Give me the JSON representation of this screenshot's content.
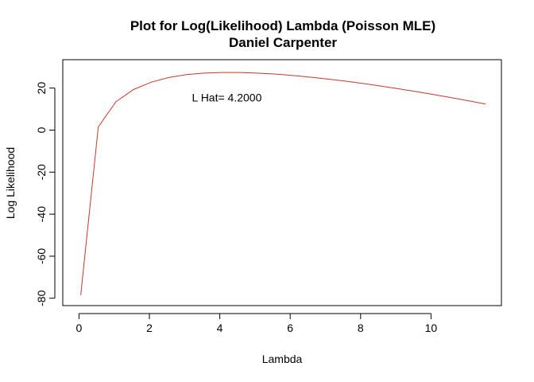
{
  "chart_data": {
    "type": "line",
    "title": "Plot for Log(Likelihood) Lambda (Poisson MLE)",
    "subtitle": "Daniel Carpenter",
    "xlabel": "Lambda",
    "ylabel": "Log Likelihood",
    "xlim": [
      -0.46,
      12.0
    ],
    "ylim": [
      -83.5,
      33.5
    ],
    "xticks": [
      0,
      2,
      4,
      6,
      8,
      10
    ],
    "yticks": [
      -80,
      -60,
      -40,
      -20,
      0,
      20
    ],
    "xtick_labels": [
      "0",
      "2",
      "4",
      "6",
      "8",
      "10"
    ],
    "ytick_labels": [
      "-80",
      "-60",
      "-40",
      "-20",
      "0",
      "20"
    ],
    "grid": false,
    "line_color": "#c0392b",
    "annotation": {
      "text": "L Hat= 4.2000",
      "x": 4.2,
      "y": 15.5
    },
    "series": [
      {
        "x": [
          0.05,
          0.55,
          1.05,
          1.55,
          2.05,
          2.55,
          3.05,
          3.55,
          4.05,
          4.55,
          5.05,
          5.55,
          6.05,
          6.55,
          7.05,
          7.55,
          8.05,
          8.55,
          9.05,
          9.55,
          10.05,
          10.55,
          11.05,
          11.55
        ],
        "y": [
          -78.5,
          1.5,
          13.5,
          19.3,
          22.8,
          25.0,
          26.4,
          27.1,
          27.4,
          27.4,
          27.1,
          26.7,
          26.0,
          25.2,
          24.3,
          23.3,
          22.2,
          21.0,
          19.7,
          18.4,
          17.0,
          15.5,
          14.0,
          12.4
        ]
      }
    ]
  }
}
